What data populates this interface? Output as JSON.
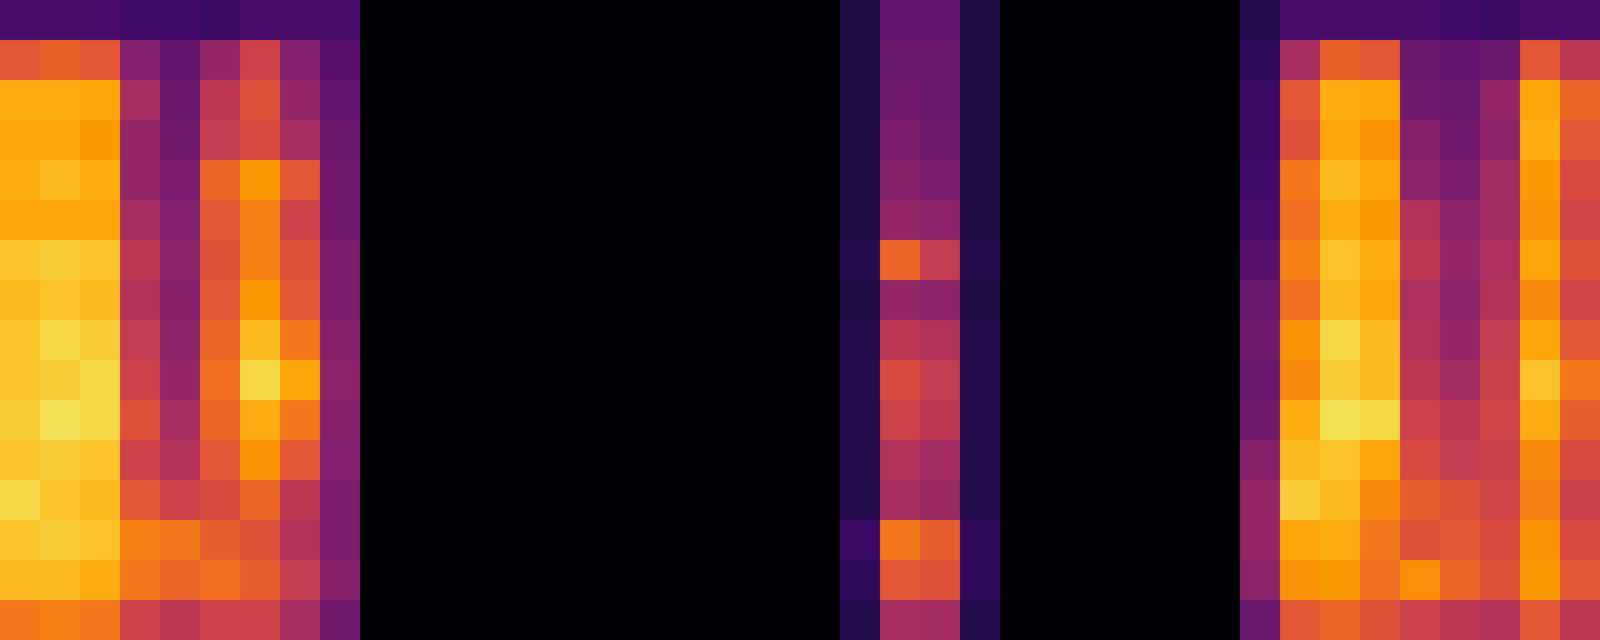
{
  "chart_data": {
    "type": "heatmap",
    "tick_labels": false,
    "zlim": [
      0,
      100
    ],
    "cells": [
      [
        22,
        22,
        22,
        20,
        20,
        18,
        22,
        22,
        22,
        0,
        0,
        0,
        0,
        0,
        0,
        0,
        0,
        0,
        0,
        0,
        0,
        12,
        28,
        28,
        12,
        0,
        0,
        0,
        0,
        0,
        0,
        14,
        22,
        22,
        22,
        22,
        20,
        18,
        22,
        22
      ],
      [
        62,
        65,
        62,
        35,
        28,
        40,
        55,
        35,
        26,
        0,
        0,
        0,
        0,
        0,
        0,
        0,
        0,
        0,
        0,
        0,
        0,
        12,
        30,
        30,
        12,
        0,
        0,
        0,
        0,
        0,
        0,
        16,
        45,
        65,
        62,
        30,
        28,
        30,
        62,
        50
      ],
      [
        82,
        82,
        80,
        45,
        30,
        50,
        60,
        40,
        28,
        0,
        0,
        0,
        0,
        0,
        0,
        0,
        0,
        0,
        0,
        0,
        0,
        12,
        32,
        30,
        12,
        0,
        0,
        0,
        0,
        0,
        0,
        18,
        62,
        82,
        80,
        32,
        30,
        40,
        80,
        66
      ],
      [
        80,
        80,
        78,
        40,
        32,
        52,
        58,
        45,
        30,
        0,
        0,
        0,
        0,
        0,
        0,
        0,
        0,
        0,
        0,
        0,
        0,
        12,
        34,
        32,
        12,
        0,
        0,
        0,
        0,
        0,
        0,
        18,
        60,
        80,
        76,
        36,
        32,
        38,
        82,
        62
      ],
      [
        82,
        84,
        82,
        40,
        34,
        66,
        78,
        62,
        32,
        0,
        0,
        0,
        0,
        0,
        0,
        0,
        0,
        0,
        0,
        0,
        0,
        12,
        36,
        34,
        12,
        0,
        0,
        0,
        0,
        0,
        0,
        20,
        70,
        84,
        80,
        38,
        34,
        44,
        78,
        58
      ],
      [
        80,
        80,
        80,
        45,
        35,
        62,
        72,
        55,
        32,
        0,
        0,
        0,
        0,
        0,
        0,
        0,
        0,
        0,
        0,
        0,
        0,
        12,
        40,
        38,
        12,
        0,
        0,
        0,
        0,
        0,
        0,
        22,
        68,
        82,
        78,
        48,
        38,
        44,
        76,
        56
      ],
      [
        86,
        88,
        86,
        50,
        38,
        60,
        72,
        60,
        34,
        0,
        0,
        0,
        0,
        0,
        0,
        0,
        0,
        0,
        0,
        0,
        0,
        14,
        66,
        52,
        14,
        0,
        0,
        0,
        0,
        0,
        0,
        26,
        72,
        86,
        82,
        50,
        40,
        46,
        80,
        60
      ],
      [
        84,
        86,
        84,
        48,
        36,
        62,
        78,
        62,
        34,
        0,
        0,
        0,
        0,
        0,
        0,
        0,
        0,
        0,
        0,
        0,
        0,
        12,
        40,
        38,
        12,
        0,
        0,
        0,
        0,
        0,
        0,
        30,
        68,
        84,
        80,
        46,
        38,
        48,
        74,
        56
      ],
      [
        86,
        90,
        88,
        52,
        38,
        66,
        84,
        70,
        36,
        0,
        0,
        0,
        0,
        0,
        0,
        0,
        0,
        0,
        0,
        0,
        0,
        14,
        50,
        48,
        14,
        0,
        0,
        0,
        0,
        0,
        0,
        32,
        76,
        90,
        84,
        48,
        40,
        52,
        80,
        62
      ],
      [
        86,
        88,
        90,
        55,
        40,
        68,
        90,
        80,
        38,
        0,
        0,
        0,
        0,
        0,
        0,
        0,
        0,
        0,
        0,
        0,
        0,
        14,
        58,
        52,
        14,
        0,
        0,
        0,
        0,
        0,
        0,
        30,
        74,
        88,
        84,
        50,
        44,
        54,
        86,
        70
      ],
      [
        88,
        92,
        90,
        60,
        45,
        66,
        82,
        70,
        36,
        0,
        0,
        0,
        0,
        0,
        0,
        0,
        0,
        0,
        0,
        0,
        0,
        14,
        55,
        50,
        14,
        0,
        0,
        0,
        0,
        0,
        0,
        32,
        82,
        92,
        90,
        55,
        50,
        56,
        82,
        64
      ],
      [
        86,
        88,
        86,
        55,
        48,
        62,
        76,
        62,
        35,
        0,
        0,
        0,
        0,
        0,
        0,
        0,
        0,
        0,
        0,
        0,
        0,
        14,
        48,
        44,
        14,
        0,
        0,
        0,
        0,
        0,
        0,
        36,
        84,
        86,
        80,
        58,
        52,
        54,
        74,
        58
      ],
      [
        90,
        86,
        84,
        62,
        55,
        58,
        66,
        50,
        34,
        0,
        0,
        0,
        0,
        0,
        0,
        0,
        0,
        0,
        0,
        0,
        0,
        14,
        45,
        42,
        14,
        0,
        0,
        0,
        0,
        0,
        0,
        40,
        88,
        84,
        74,
        64,
        60,
        56,
        72,
        54
      ],
      [
        86,
        88,
        86,
        72,
        70,
        64,
        60,
        48,
        34,
        0,
        0,
        0,
        0,
        0,
        0,
        0,
        0,
        0,
        0,
        0,
        0,
        18,
        70,
        64,
        16,
        0,
        0,
        0,
        0,
        0,
        0,
        40,
        80,
        82,
        70,
        60,
        62,
        58,
        76,
        58
      ],
      [
        84,
        84,
        82,
        70,
        66,
        68,
        64,
        52,
        36,
        0,
        0,
        0,
        0,
        0,
        0,
        0,
        0,
        0,
        0,
        0,
        0,
        16,
        62,
        60,
        16,
        0,
        0,
        0,
        0,
        0,
        0,
        38,
        76,
        78,
        68,
        75,
        66,
        60,
        78,
        62
      ],
      [
        70,
        72,
        70,
        55,
        50,
        55,
        55,
        45,
        32,
        0,
        0,
        0,
        0,
        0,
        0,
        0,
        0,
        0,
        0,
        0,
        0,
        14,
        45,
        44,
        14,
        0,
        0,
        0,
        0,
        0,
        0,
        30,
        62,
        66,
        60,
        55,
        50,
        48,
        62,
        50
      ]
    ]
  }
}
